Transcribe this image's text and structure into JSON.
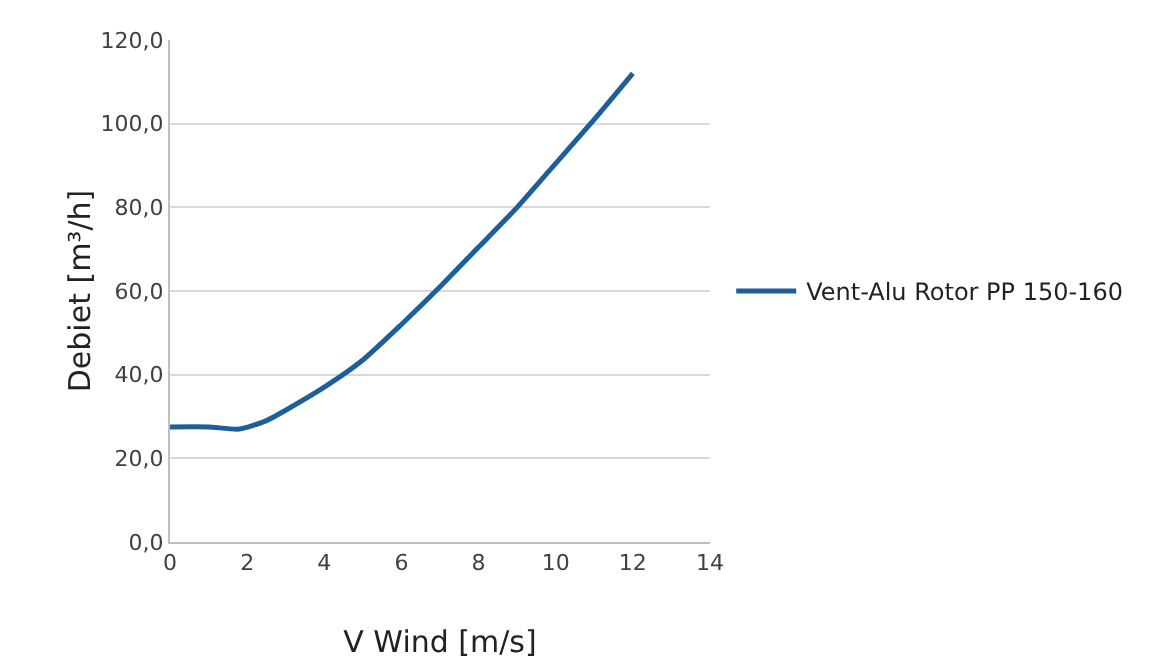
{
  "chart_data": {
    "type": "line",
    "xlabel": "V Wind [m/s]",
    "ylabel": "Debiet [m³/h]",
    "x": [
      0,
      1,
      1.8,
      2.5,
      3,
      4,
      5,
      6,
      7,
      8,
      9,
      10,
      11,
      12
    ],
    "series": [
      {
        "name": "Vent-Alu Rotor PP 150-160",
        "color": "#1f5f99",
        "values": [
          27.5,
          27.5,
          27,
          29,
          31.5,
          37,
          43.5,
          52,
          61,
          70.5,
          80,
          90.5,
          101,
          112
        ]
      }
    ],
    "xlim": [
      0,
      14
    ],
    "xticks": [
      0,
      2,
      4,
      6,
      8,
      10,
      12,
      14
    ],
    "ylim": [
      0,
      120
    ],
    "yticks": [
      {
        "value": 0,
        "label": "0,0"
      },
      {
        "value": 20,
        "label": "20,0"
      },
      {
        "value": 40,
        "label": "40,0"
      },
      {
        "value": 60,
        "label": "60,0"
      },
      {
        "value": 80,
        "label": "80,0"
      },
      {
        "value": 100,
        "label": "100,0"
      },
      {
        "value": 120,
        "label": "120,0"
      }
    ],
    "grid": "y",
    "legend": "right",
    "marker": "none",
    "line_style": "solid"
  }
}
